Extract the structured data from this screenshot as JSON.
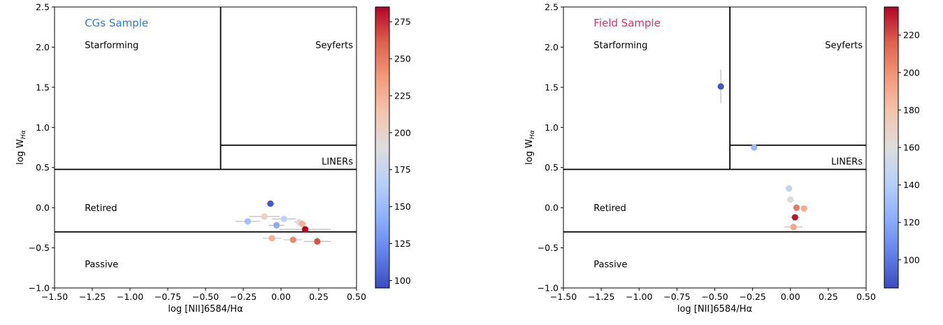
{
  "chart_data": [
    {
      "type": "scatter",
      "title": "CGs Sample",
      "title_color": "#2a7fd4",
      "xlabel": "log [NII]6584/Hα",
      "ylabel_main": "log W",
      "ylabel_sub": "Hα",
      "xlim": [
        -1.5,
        0.5
      ],
      "ylim": [
        -1.0,
        2.5
      ],
      "xticks": [
        -1.5,
        -1.25,
        -1.0,
        -0.75,
        -0.5,
        -0.25,
        0.0,
        0.25,
        0.5
      ],
      "xtick_labels": [
        "−1.50",
        "−1.25",
        "−1.00",
        "−0.75",
        "−0.50",
        "−0.25",
        "0.00",
        "0.25",
        "0.50"
      ],
      "yticks": [
        -1.0,
        -0.5,
        0.0,
        0.5,
        1.0,
        1.5,
        2.0,
        2.5
      ],
      "ytick_labels": [
        "−1.0",
        "−0.5",
        "0.0",
        "0.5",
        "1.0",
        "1.5",
        "2.0",
        "2.5"
      ],
      "region_labels": [
        "Starforming",
        "Seyferts",
        "LINERs",
        "Retired",
        "Passive"
      ],
      "colorbar": {
        "range": [
          95,
          285
        ],
        "ticks": [
          100,
          125,
          150,
          175,
          200,
          225,
          250,
          275
        ],
        "tick_labels": [
          "100",
          "125",
          "150",
          "175",
          "200",
          "225",
          "250",
          "275"
        ]
      },
      "points": [
        {
          "x": -0.07,
          "y": 0.05,
          "c": 100,
          "xerr": 0.03,
          "yerr": 0.0
        },
        {
          "x": -0.22,
          "y": -0.17,
          "c": 155,
          "xerr": 0.08,
          "yerr": 0.03
        },
        {
          "x": -0.11,
          "y": -0.11,
          "c": 200,
          "xerr": 0.1,
          "yerr": 0.02
        },
        {
          "x": 0.02,
          "y": -0.14,
          "c": 170,
          "xerr": 0.08,
          "yerr": 0.03
        },
        {
          "x": -0.03,
          "y": -0.22,
          "c": 140,
          "xerr": 0.05,
          "yerr": 0.03
        },
        {
          "x": 0.12,
          "y": -0.18,
          "c": 195,
          "xerr": 0.03,
          "yerr": 0.03
        },
        {
          "x": 0.14,
          "y": -0.2,
          "c": 225,
          "xerr": 0.03,
          "yerr": 0.02
        },
        {
          "x": 0.16,
          "y": -0.27,
          "c": 285,
          "xerr": 0.17,
          "yerr": 0.03
        },
        {
          "x": -0.06,
          "y": -0.38,
          "c": 225,
          "xerr": 0.06,
          "yerr": 0.03
        },
        {
          "x": 0.08,
          "y": -0.4,
          "c": 245,
          "xerr": 0.06,
          "yerr": 0.03
        },
        {
          "x": 0.24,
          "y": -0.42,
          "c": 265,
          "xerr": 0.09,
          "yerr": 0.05
        }
      ]
    },
    {
      "type": "scatter",
      "title": "Field Sample",
      "title_color": "#d6336c",
      "xlabel": "log [NII]6584/Hα",
      "ylabel_main": "log W",
      "ylabel_sub": "Hα",
      "xlim": [
        -1.5,
        0.5
      ],
      "ylim": [
        -1.0,
        2.5
      ],
      "xticks": [
        -1.5,
        -1.25,
        -1.0,
        -0.75,
        -0.5,
        -0.25,
        0.0,
        0.25,
        0.5
      ],
      "xtick_labels": [
        "−1.50",
        "−1.25",
        "−1.00",
        "−0.75",
        "−0.50",
        "−0.25",
        "0.00",
        "0.25",
        "0.50"
      ],
      "yticks": [
        -1.0,
        -0.5,
        0.0,
        0.5,
        1.0,
        1.5,
        2.0,
        2.5
      ],
      "ytick_labels": [
        "−1.0",
        "−0.5",
        "0.0",
        "0.5",
        "1.0",
        "1.5",
        "2.0",
        "2.5"
      ],
      "region_labels": [
        "Starforming",
        "Seyferts",
        "LINERs",
        "Retired",
        "Passive"
      ],
      "colorbar": {
        "range": [
          85,
          235
        ],
        "ticks": [
          100,
          120,
          140,
          160,
          180,
          200,
          220
        ],
        "tick_labels": [
          "100",
          "120",
          "140",
          "160",
          "180",
          "200",
          "220"
        ]
      },
      "points": [
        {
          "x": -0.46,
          "y": 1.51,
          "c": 88,
          "xerr": 0.0,
          "yerr": 0.21
        },
        {
          "x": -0.24,
          "y": 0.75,
          "c": 128,
          "xerr": 0.0,
          "yerr": 0.02
        },
        {
          "x": -0.01,
          "y": 0.24,
          "c": 145,
          "xerr": 0.0,
          "yerr": 0.0
        },
        {
          "x": 0.0,
          "y": 0.1,
          "c": 162,
          "xerr": 0.0,
          "yerr": 0.0
        },
        {
          "x": 0.04,
          "y": 0.0,
          "c": 208,
          "xerr": 0.0,
          "yerr": 0.0
        },
        {
          "x": 0.09,
          "y": -0.01,
          "c": 190,
          "xerr": 0.0,
          "yerr": 0.0
        },
        {
          "x": 0.03,
          "y": -0.12,
          "c": 232,
          "xerr": 0.03,
          "yerr": 0.02
        },
        {
          "x": 0.02,
          "y": -0.24,
          "c": 192,
          "xerr": 0.06,
          "yerr": 0.0
        }
      ]
    }
  ]
}
